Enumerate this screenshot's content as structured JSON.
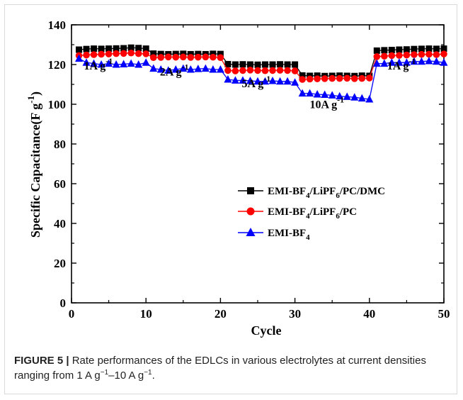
{
  "chart_data": {
    "type": "line",
    "xlabel": "Cycle",
    "ylabel": "Specific Capacitance(F g-1)",
    "xlim": [
      0,
      50
    ],
    "ylim": [
      0,
      140
    ],
    "x_ticks": [
      0,
      10,
      20,
      30,
      40,
      50
    ],
    "y_ticks": [
      0,
      20,
      40,
      60,
      80,
      100,
      120,
      140
    ],
    "grid": false,
    "legend_position": "center-right",
    "x": [
      1,
      2,
      3,
      4,
      5,
      6,
      7,
      8,
      9,
      10,
      11,
      12,
      13,
      14,
      15,
      16,
      17,
      18,
      19,
      20,
      21,
      22,
      23,
      24,
      25,
      26,
      27,
      28,
      29,
      30,
      31,
      32,
      33,
      34,
      35,
      36,
      37,
      38,
      39,
      40,
      41,
      42,
      43,
      44,
      45,
      46,
      47,
      48,
      49,
      50
    ],
    "series": [
      {
        "name": "EMI-BF4/LiPF6/PC/DMC",
        "color": "#000000",
        "marker": "square",
        "values": [
          127.5,
          127.8,
          128.0,
          127.9,
          128.0,
          128.1,
          128.2,
          128.5,
          128.3,
          128.0,
          125.5,
          125.3,
          125.2,
          125.3,
          125.4,
          125.2,
          125.3,
          125.2,
          125.4,
          125.3,
          120.2,
          120.0,
          120.1,
          120.0,
          119.9,
          120.0,
          120.0,
          120.1,
          120.0,
          120.0,
          114.5,
          114.3,
          114.4,
          114.2,
          114.3,
          114.4,
          114.3,
          114.2,
          114.4,
          114.3,
          127.0,
          127.2,
          127.3,
          127.5,
          127.6,
          127.8,
          127.9,
          128.0,
          127.9,
          128.0
        ]
      },
      {
        "name": "EMI-BF4/LiPF6/PC",
        "color": "#ff0000",
        "marker": "circle",
        "values": [
          124.5,
          124.8,
          125.0,
          125.2,
          125.3,
          125.5,
          125.6,
          125.8,
          125.5,
          125.4,
          123.5,
          123.6,
          123.8,
          123.7,
          123.8,
          123.6,
          123.7,
          123.8,
          123.7,
          123.5,
          117.0,
          116.8,
          117.0,
          117.2,
          117.0,
          116.9,
          117.0,
          117.1,
          117.0,
          116.8,
          112.5,
          112.7,
          112.8,
          112.9,
          113.0,
          113.0,
          113.1,
          112.9,
          113.0,
          113.2,
          124.0,
          124.2,
          124.5,
          124.6,
          124.8,
          125.0,
          125.1,
          125.2,
          125.0,
          125.3
        ]
      },
      {
        "name": "EMI-BF4",
        "color": "#0000ff",
        "marker": "triangle",
        "values": [
          123.0,
          121.0,
          120.5,
          120.0,
          120.5,
          120.0,
          120.2,
          120.5,
          120.0,
          121.0,
          118.0,
          117.5,
          117.0,
          117.5,
          118.0,
          117.5,
          117.8,
          118.0,
          117.5,
          117.5,
          112.5,
          112.0,
          112.0,
          111.8,
          111.5,
          111.5,
          111.8,
          111.5,
          111.5,
          111.0,
          105.5,
          105.5,
          105.0,
          104.8,
          104.5,
          104.0,
          103.8,
          103.5,
          103.0,
          102.5,
          120.5,
          120.5,
          121.0,
          121.0,
          121.0,
          121.5,
          121.5,
          121.8,
          121.5,
          121.0
        ]
      }
    ],
    "annotations": [
      {
        "label": "1A g",
        "sup": "-1",
        "x": 3.6,
        "y": 117.5
      },
      {
        "label": "2A g",
        "sup": "-1",
        "x": 13.8,
        "y": 114.5
      },
      {
        "label": "5A g",
        "sup": "-1",
        "x": 24.8,
        "y": 108.5
      },
      {
        "label": "10A g",
        "sup": "-1",
        "x": 34.3,
        "y": 98.0
      },
      {
        "label": "1A g",
        "sup": "-1",
        "x": 44.3,
        "y": 117.5
      }
    ]
  },
  "legend": {
    "item1": {
      "a": "EMI-BF",
      "b": "4",
      "c": "/LiPF",
      "d": "6",
      "e": "/PC/DMC"
    },
    "item2": {
      "a": "EMI-BF",
      "b": "4",
      "c": "/LiPF",
      "d": "6",
      "e": "/PC"
    },
    "item3": {
      "a": "EMI-BF",
      "b": "4"
    }
  },
  "axis": {
    "ylabel_main": "Specific Capacitance(F g",
    "ylabel_sup": "-1",
    "ylabel_end": ")"
  },
  "caption": {
    "label": "FIGURE 5 |",
    "text_1": " Rate performances of the EDLCs in various electrolytes at current densities ranging from 1 A g",
    "sup_1": "−1",
    "text_2": "–10 A g",
    "sup_2": "−1",
    "text_3": "."
  }
}
